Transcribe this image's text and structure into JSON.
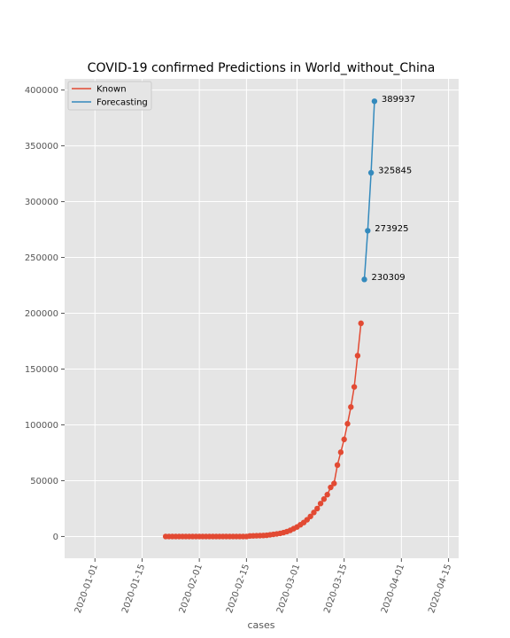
{
  "chart_data": {
    "type": "line",
    "title": "COVID-19 confirmed Predictions in World_without_China",
    "xlabel": "cases",
    "ylabel": "",
    "x_type": "date",
    "xlim": [
      "2019-12-23",
      "2020-04-18"
    ],
    "ylim": [
      -19500,
      410000
    ],
    "x_ticks": [
      "2020-01-01",
      "2020-01-15",
      "2020-02-01",
      "2020-02-15",
      "2020-03-01",
      "2020-03-15",
      "2020-04-01",
      "2020-04-15"
    ],
    "y_ticks": [
      0,
      50000,
      100000,
      150000,
      200000,
      250000,
      300000,
      350000,
      400000
    ],
    "grid": true,
    "legend": "top-left",
    "colors": {
      "background": "#e5e5e5",
      "grid": "#ffffff",
      "known": "#e24a33",
      "forecasting": "#348abd"
    },
    "series": [
      {
        "name": "Known",
        "x": [
          "2020-01-22",
          "2020-01-23",
          "2020-01-24",
          "2020-01-25",
          "2020-01-26",
          "2020-01-27",
          "2020-01-28",
          "2020-01-29",
          "2020-01-30",
          "2020-01-31",
          "2020-02-01",
          "2020-02-02",
          "2020-02-03",
          "2020-02-04",
          "2020-02-05",
          "2020-02-06",
          "2020-02-07",
          "2020-02-08",
          "2020-02-09",
          "2020-02-10",
          "2020-02-11",
          "2020-02-12",
          "2020-02-13",
          "2020-02-14",
          "2020-02-15",
          "2020-02-16",
          "2020-02-17",
          "2020-02-18",
          "2020-02-19",
          "2020-02-20",
          "2020-02-21",
          "2020-02-22",
          "2020-02-23",
          "2020-02-24",
          "2020-02-25",
          "2020-02-26",
          "2020-02-27",
          "2020-02-28",
          "2020-02-29",
          "2020-03-01",
          "2020-03-02",
          "2020-03-03",
          "2020-03-04",
          "2020-03-05",
          "2020-03-06",
          "2020-03-07",
          "2020-03-08",
          "2020-03-09",
          "2020-03-10",
          "2020-03-11",
          "2020-03-12",
          "2020-03-13",
          "2020-03-14",
          "2020-03-15",
          "2020-03-16",
          "2020-03-17",
          "2020-03-18",
          "2020-03-19",
          "2020-03-20"
        ],
        "values": [
          0,
          0,
          0,
          0,
          0,
          0,
          0,
          0,
          0,
          0,
          0,
          0,
          0,
          0,
          0,
          0,
          0,
          0,
          0,
          0,
          0,
          0,
          0,
          0,
          0,
          500,
          600,
          700,
          800,
          900,
          1100,
          1500,
          1900,
          2300,
          2800,
          3500,
          4400,
          5500,
          7000,
          8500,
          10500,
          12500,
          15000,
          18000,
          21500,
          25000,
          29500,
          33500,
          37500,
          44000,
          47500,
          64000,
          75500,
          87000,
          101000,
          116000,
          134000,
          162000,
          191000
        ]
      },
      {
        "name": "Forecasting",
        "x": [
          "2020-03-21",
          "2020-03-22",
          "2020-03-23",
          "2020-03-24"
        ],
        "values": [
          230309,
          273925,
          325845,
          389937
        ],
        "labels": [
          "230309",
          "273925",
          "325845",
          "389937"
        ]
      }
    ]
  }
}
